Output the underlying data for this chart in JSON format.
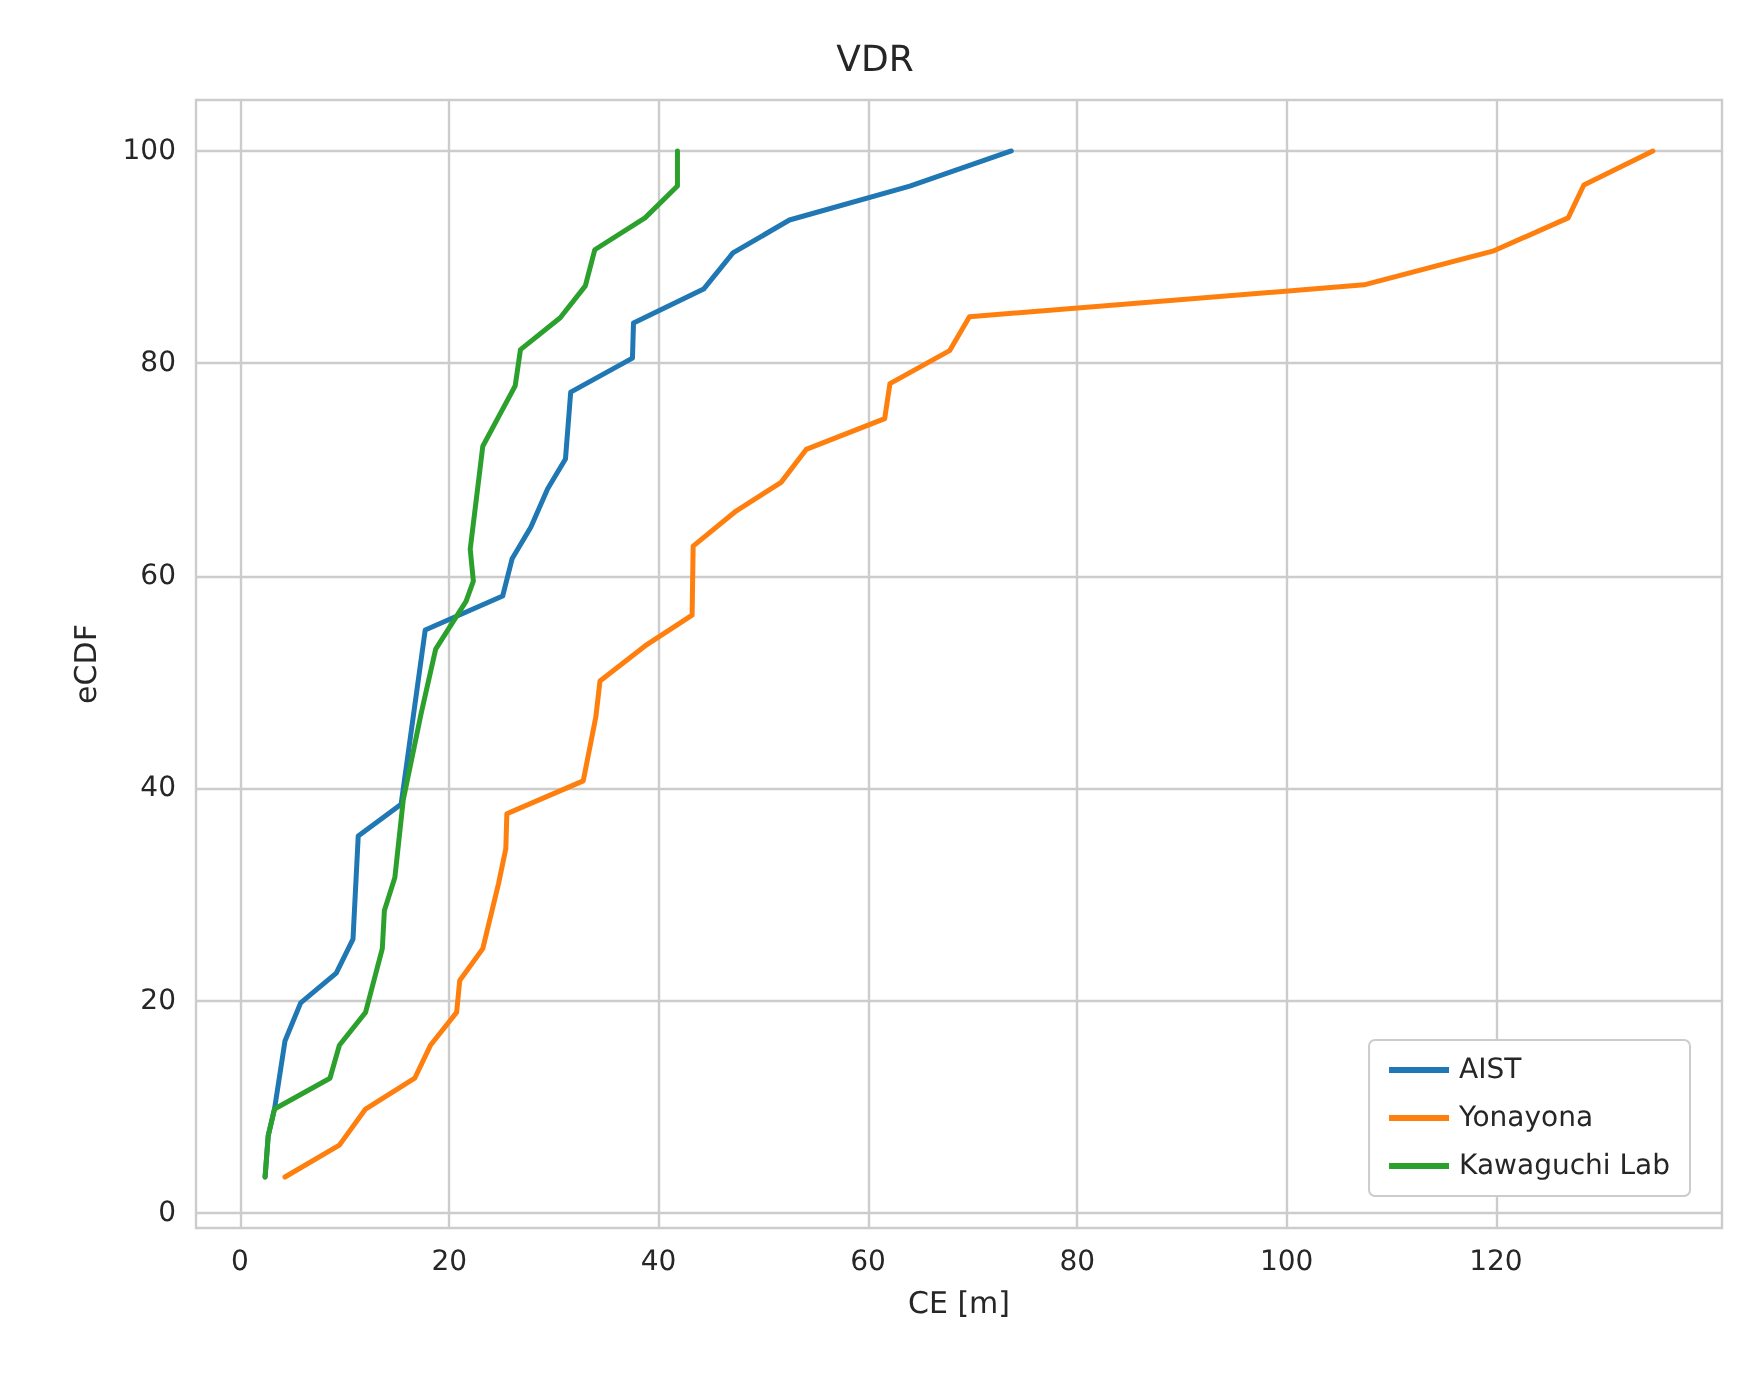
{
  "chart_data": {
    "type": "line",
    "title": "VDR",
    "xlabel": "CE [m]",
    "ylabel": "eCDF",
    "xlim": [
      -4.2,
      141.6
    ],
    "xticks": [
      0,
      20,
      40,
      60,
      80,
      100,
      120
    ],
    "ylim": [
      -1.4,
      104.8
    ],
    "yticks": [
      0,
      20,
      40,
      60,
      80,
      100
    ],
    "grid": true,
    "legend": "bottom right",
    "marker": "none",
    "line_style": "solid",
    "series": [
      {
        "name": "AIST",
        "color": "#1f77b4",
        "x": [
          2.4,
          2.7,
          3.3,
          4.3,
          5.8,
          9.2,
          10.8,
          11.3,
          15.4,
          17.7,
          25.1,
          26,
          27.8,
          29.4,
          31.1,
          31.6,
          37.5,
          37.6,
          44.3,
          47.1,
          52.5,
          64,
          73.7
        ],
        "values": [
          3.4,
          7.3,
          9.8,
          16.2,
          19.8,
          22.6,
          25.8,
          35.5,
          38.5,
          54.9,
          58.1,
          61.6,
          64.6,
          68.2,
          71,
          77.3,
          80.5,
          83.8,
          87,
          90.4,
          93.5,
          96.7,
          100
        ]
      },
      {
        "name": "Yonayona",
        "color": "#ff7f0e",
        "x": [
          4.3,
          9.5,
          12,
          16.7,
          18.2,
          20.7,
          21,
          23.2,
          24.7,
          25.4,
          25.5,
          32.8,
          34,
          34.4,
          38.7,
          43.2,
          43.3,
          47.4,
          51.7,
          54.1,
          61.6,
          62.1,
          67.8,
          69.7,
          107.4,
          119.8,
          126.9,
          128.4,
          135
        ],
        "values": [
          3.4,
          6.4,
          9.8,
          12.7,
          15.8,
          18.9,
          21.9,
          24.9,
          31,
          34.3,
          37.6,
          40.7,
          46.7,
          50.1,
          53.4,
          56.3,
          62.8,
          66.1,
          68.8,
          71.9,
          74.8,
          78.1,
          81.2,
          84.4,
          87.4,
          90.6,
          93.7,
          96.8,
          100
        ]
      },
      {
        "name": "Kawaguchi Lab",
        "color": "#2ca02c",
        "x": [
          2.4,
          2.7,
          3.3,
          8.6,
          9.5,
          12,
          13.6,
          13.8,
          14.8,
          15.6,
          17.3,
          18.7,
          21.6,
          22.3,
          22,
          23.2,
          26.3,
          26.8,
          30.6,
          33,
          33.9,
          38.7,
          41.8,
          41.8
        ],
        "values": [
          3.4,
          7.3,
          9.8,
          12.7,
          15.8,
          18.9,
          24.9,
          28.5,
          31.6,
          38.9,
          47,
          53.1,
          57.6,
          59.5,
          62.5,
          72.2,
          77.9,
          81.3,
          84.3,
          87.3,
          90.7,
          93.7,
          96.7,
          100
        ]
      }
    ]
  }
}
